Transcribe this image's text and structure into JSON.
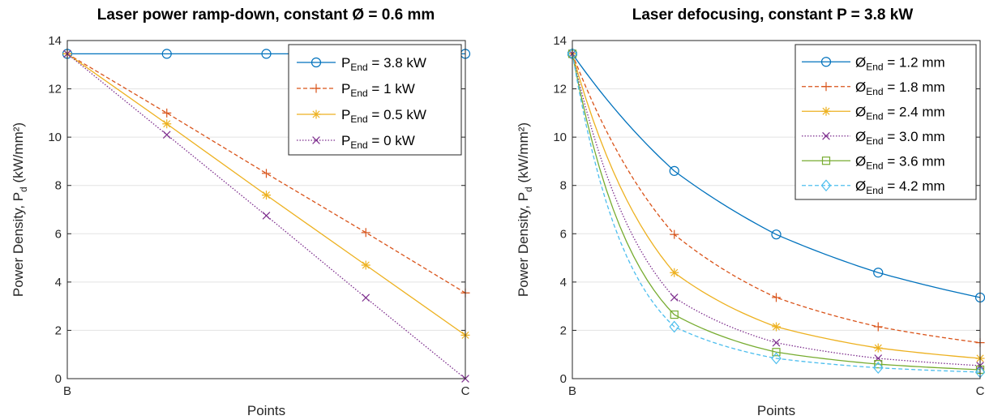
{
  "chart_data": [
    {
      "type": "line",
      "title": "Laser power ramp-down, constant Ø = 0.6 mm",
      "xlabel": "Points",
      "ylabel_main": "Power Density, P",
      "ylabel_sub": "d",
      "ylabel_unit": " (kW/mm²)",
      "x_ticks": [
        "B",
        "C"
      ],
      "x": [
        0,
        0.25,
        0.5,
        0.75,
        1
      ],
      "ylim": [
        0,
        14
      ],
      "y_ticks": [
        0,
        2,
        4,
        6,
        8,
        10,
        12,
        14
      ],
      "grid": "horizontal",
      "legend_position": "top-right",
      "series": [
        {
          "label_main": "P",
          "label_sub": "End",
          "label_rest": " = 3.8 kW",
          "color": "#0072BD",
          "marker": "circle",
          "dash": "solid",
          "values": [
            13.45,
            13.45,
            13.45,
            13.45,
            13.45
          ]
        },
        {
          "label_main": "P",
          "label_sub": "End",
          "label_rest": " = 1 kW",
          "color": "#D95319",
          "marker": "plus",
          "dash": "dashed",
          "values": [
            13.45,
            11.0,
            8.5,
            6.05,
            3.55
          ]
        },
        {
          "label_main": "P",
          "label_sub": "End",
          "label_rest": " = 0.5 kW",
          "color": "#EDB120",
          "marker": "star",
          "dash": "solid",
          "values": [
            13.45,
            10.55,
            7.6,
            4.7,
            1.8
          ]
        },
        {
          "label_main": "P",
          "label_sub": "End",
          "label_rest": " = 0 kW",
          "color": "#7E2F8E",
          "marker": "x",
          "dash": "dotted",
          "values": [
            13.45,
            10.1,
            6.75,
            3.35,
            0.0
          ]
        }
      ]
    },
    {
      "type": "line",
      "title": "Laser defocusing, constant P = 3.8 kW",
      "xlabel": "Points",
      "ylabel_main": "Power Density, P",
      "ylabel_sub": "d",
      "ylabel_unit": " (kW/mm²)",
      "x_ticks": [
        "B",
        "C"
      ],
      "x": [
        0,
        0.25,
        0.5,
        0.75,
        1
      ],
      "ylim": [
        0,
        14
      ],
      "y_ticks": [
        0,
        2,
        4,
        6,
        8,
        10,
        12,
        14
      ],
      "grid": "horizontal",
      "legend_position": "top-right",
      "series": [
        {
          "label_main": "Ø",
          "label_sub": "End",
          "label_rest": " = 1.2 mm",
          "color": "#0072BD",
          "marker": "circle",
          "dash": "solid",
          "values": [
            13.45,
            8.6,
            5.97,
            4.39,
            3.36
          ]
        },
        {
          "label_main": "Ø",
          "label_sub": "End",
          "label_rest": " = 1.8 mm",
          "color": "#D95319",
          "marker": "plus",
          "dash": "dashed",
          "values": [
            13.45,
            5.97,
            3.36,
            2.15,
            1.49
          ]
        },
        {
          "label_main": "Ø",
          "label_sub": "End",
          "label_rest": " = 2.4 mm",
          "color": "#EDB120",
          "marker": "star",
          "dash": "solid",
          "values": [
            13.45,
            4.39,
            2.15,
            1.27,
            0.84
          ]
        },
        {
          "label_main": "Ø",
          "label_sub": "End",
          "label_rest": " = 3.0 mm",
          "color": "#7E2F8E",
          "marker": "x",
          "dash": "dotted",
          "values": [
            13.45,
            3.36,
            1.49,
            0.84,
            0.54
          ]
        },
        {
          "label_main": "Ø",
          "label_sub": "End",
          "label_rest": " = 3.6 mm",
          "color": "#77AC30",
          "marker": "square",
          "dash": "solid",
          "values": [
            13.45,
            2.65,
            1.1,
            0.6,
            0.37
          ]
        },
        {
          "label_main": "Ø",
          "label_sub": "End",
          "label_rest": " = 4.2 mm",
          "color": "#4DBEEE",
          "marker": "diamond",
          "dash": "dashed",
          "values": [
            13.45,
            2.15,
            0.84,
            0.45,
            0.27
          ]
        }
      ]
    }
  ]
}
